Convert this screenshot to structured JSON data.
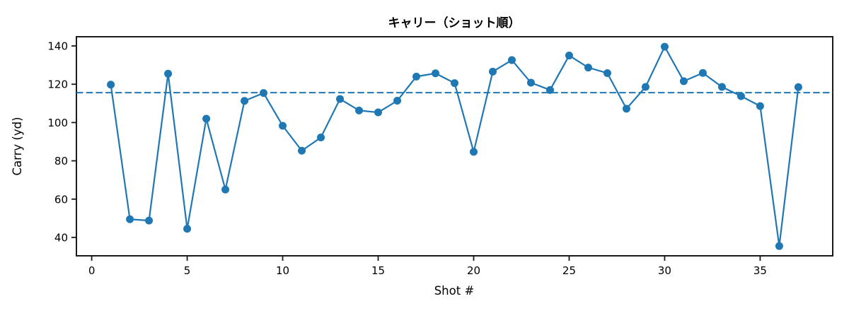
{
  "chart_data": {
    "type": "line",
    "title": "キャリー（ショット順）",
    "xlabel": "Shot #",
    "ylabel": "Carry (yd)",
    "x": [
      1,
      2,
      3,
      4,
      5,
      6,
      7,
      8,
      9,
      10,
      11,
      12,
      13,
      14,
      15,
      16,
      17,
      18,
      19,
      20,
      21,
      22,
      23,
      24,
      25,
      26,
      27,
      28,
      29,
      30,
      31,
      32,
      33,
      34,
      35,
      36,
      37
    ],
    "series": [
      {
        "name": "Carry",
        "values": [
          119.8,
          49.5,
          48.8,
          125.5,
          44.5,
          102.0,
          65.0,
          111.3,
          115.4,
          98.3,
          85.3,
          92.2,
          112.3,
          106.3,
          105.3,
          111.4,
          124.0,
          125.7,
          120.6,
          84.7,
          126.6,
          132.6,
          120.8,
          117.0,
          135.0,
          128.7,
          125.8,
          107.2,
          118.6,
          139.6,
          121.6,
          125.9,
          118.6,
          113.8,
          108.6,
          35.5,
          118.5
        ]
      }
    ],
    "reference_line": {
      "value": 115.6,
      "style": "dashed"
    },
    "xlim": [
      -0.8,
      38.8
    ],
    "ylim": [
      30.4,
      144.8
    ],
    "xticks": [
      0,
      5,
      10,
      15,
      20,
      25,
      30,
      35
    ],
    "yticks": [
      40,
      60,
      80,
      100,
      120,
      140
    ],
    "grid": false,
    "legend_position": "none",
    "line_color": "#1f77b4",
    "marker": "circle",
    "axis_color": "#1a1a1a"
  }
}
